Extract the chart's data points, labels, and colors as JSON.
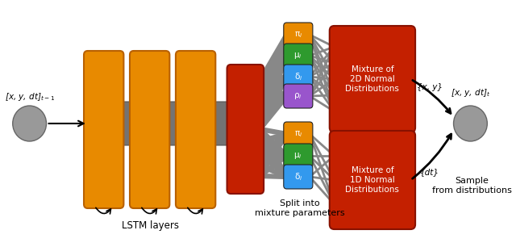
{
  "bg_color": "#ffffff",
  "lstm_color": "#E88A00",
  "gray_conn_color": "#737373",
  "red_block_color": "#C42000",
  "pi_color": "#E88A00",
  "mu_color": "#2E9A2E",
  "sigma_color": "#3399EE",
  "rho_color": "#9955CC",
  "circle_color": "#999999",
  "gray_fan_color": "#888888",
  "label_input": "[x, y, dt]$_{t-1}$",
  "label_output": "[x, y, dt]$_t$",
  "label_xy": "{x, y}",
  "label_dt": "{dt}",
  "label_lstm": "LSTM layers",
  "label_split": "Split into\nmixture parameters",
  "label_sample": "Sample\nfrom distributions",
  "label_2d": "Mixture of\n2D Normal\nDistributions",
  "label_1d": "Mixture of\n1D Normal\nDistributions"
}
